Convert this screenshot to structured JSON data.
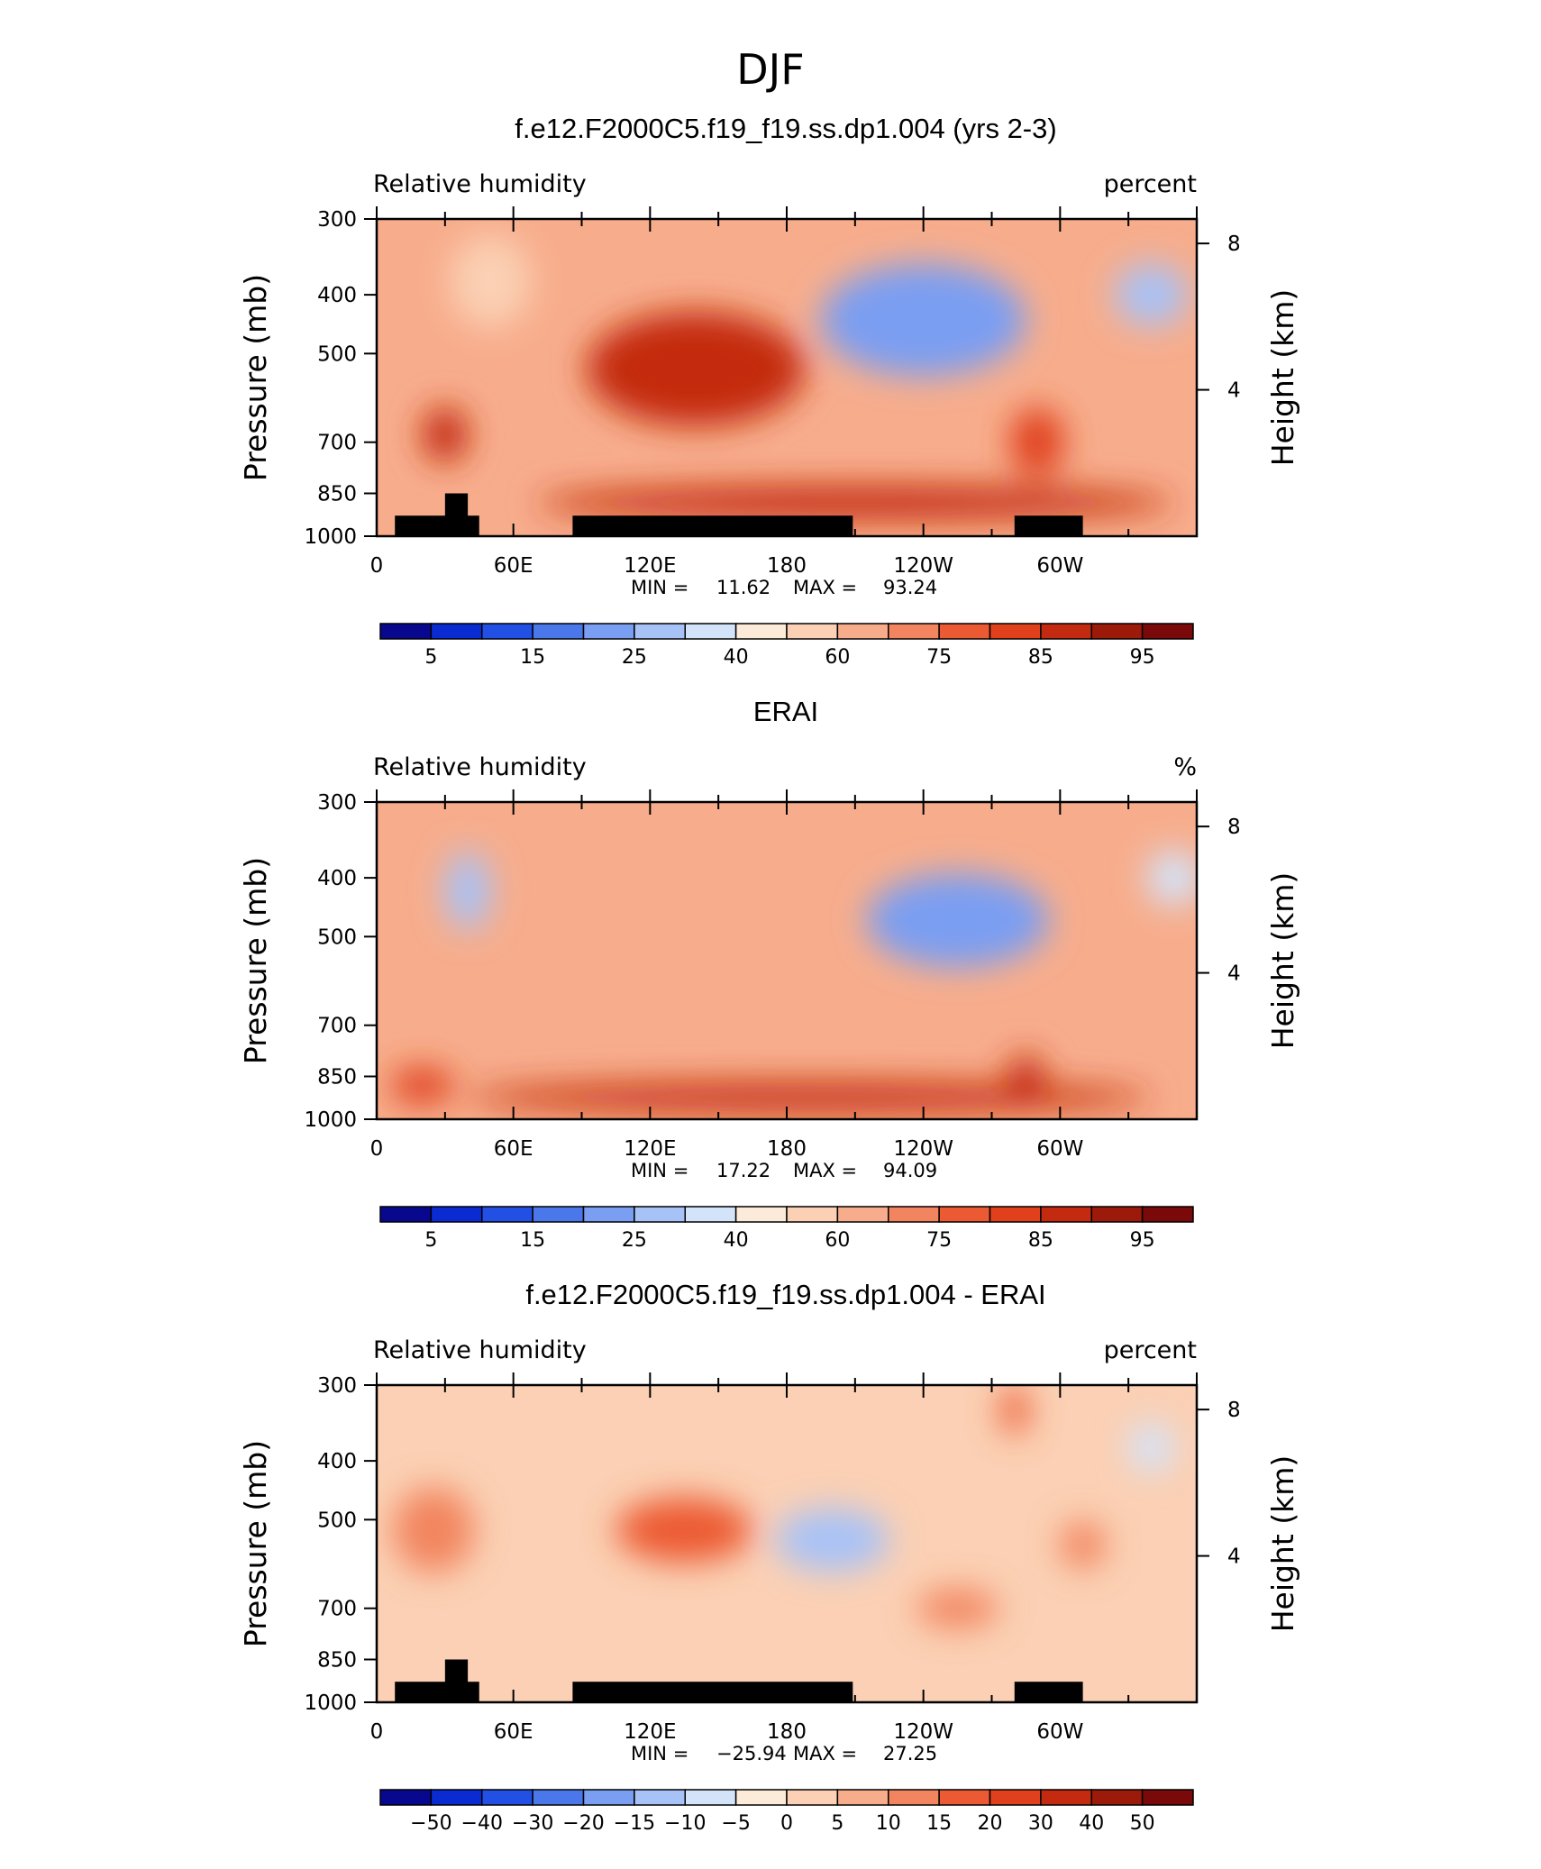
{
  "figure": {
    "title": "DJF"
  },
  "chart_data": [
    {
      "type": "heatmap",
      "title": "f.e12.F2000C5.f19_f19.ss.dp1.004 (yrs 2-3)",
      "left_label": "Relative humidity",
      "right_label": "percent",
      "ylabel": "Pressure (mb)",
      "ylabel_right": "Height (km)",
      "x_ticks": [
        "0",
        "60E",
        "120E",
        "180",
        "120W",
        "60W"
      ],
      "x_tick_values": [
        0,
        60,
        120,
        180,
        240,
        300
      ],
      "xlim": [
        0,
        360
      ],
      "y_ticks": [
        "300",
        "400",
        "500",
        "700",
        "850",
        "1000"
      ],
      "y_tick_values": [
        300,
        400,
        500,
        700,
        850,
        1000
      ],
      "ylim": [
        1000,
        300
      ],
      "height_ticks": [
        "8",
        "4"
      ],
      "height_tick_values": [
        8,
        4
      ],
      "min_label": "MIN =",
      "min_value": "11.62",
      "max_label": "MAX =",
      "max_value": "93.24",
      "colorbar_labels": [
        "5",
        "15",
        "25",
        "40",
        "60",
        "75",
        "85",
        "95"
      ],
      "colorbar_colors": [
        "#08088e",
        "#0b2bd2",
        "#2350e4",
        "#4a78eb",
        "#7a9ef2",
        "#a7c2f7",
        "#d3e3fa",
        "#fdebd9",
        "#fbd0b4",
        "#f7ad8c",
        "#f2855f",
        "#ec5a33",
        "#e0401b",
        "#c42a0f",
        "#9c1a0a",
        "#7a0a0a"
      ],
      "blobs": [
        {
          "lon": 140,
          "p": 530,
          "dx": 48,
          "dy": 210,
          "value": 88
        },
        {
          "lon": 210,
          "p": 880,
          "dx": 140,
          "dy": 80,
          "value": 85
        },
        {
          "lon": 240,
          "p": 440,
          "dx": 45,
          "dy": 170,
          "value": 22
        },
        {
          "lon": 340,
          "p": 400,
          "dx": 16,
          "dy": 80,
          "value": 28
        },
        {
          "lon": 30,
          "p": 680,
          "dx": 10,
          "dy": 120,
          "value": 85
        },
        {
          "lon": 290,
          "p": 700,
          "dx": 12,
          "dy": 160,
          "value": 82
        },
        {
          "lon": 50,
          "p": 380,
          "dx": 18,
          "dy": 120,
          "value": 50
        }
      ],
      "base_value": 62,
      "mountains": [
        {
          "lon0": 8,
          "lon1": 45,
          "p_top": 925
        },
        {
          "lon0": 30,
          "lon1": 40,
          "p_top": 850
        },
        {
          "lon0": 86,
          "lon1": 209,
          "p_top": 925
        },
        {
          "lon0": 280,
          "lon1": 310,
          "p_top": 925
        }
      ]
    },
    {
      "type": "heatmap",
      "title": "ERAI",
      "left_label": "Relative humidity",
      "right_label": "%",
      "ylabel": "Pressure (mb)",
      "ylabel_right": "Height (km)",
      "x_ticks": [
        "0",
        "60E",
        "120E",
        "180",
        "120W",
        "60W"
      ],
      "x_tick_values": [
        0,
        60,
        120,
        180,
        240,
        300
      ],
      "xlim": [
        0,
        360
      ],
      "y_ticks": [
        "300",
        "400",
        "500",
        "700",
        "850",
        "1000"
      ],
      "y_tick_values": [
        300,
        400,
        500,
        700,
        850,
        1000
      ],
      "ylim": [
        1000,
        300
      ],
      "height_ticks": [
        "8",
        "4"
      ],
      "height_tick_values": [
        8,
        4
      ],
      "min_label": "MIN =",
      "min_value": "17.22",
      "max_label": "MAX =",
      "max_value": "94.09",
      "colorbar_labels": [
        "5",
        "15",
        "25",
        "40",
        "60",
        "75",
        "85",
        "95"
      ],
      "colorbar_colors": [
        "#08088e",
        "#0b2bd2",
        "#2350e4",
        "#4a78eb",
        "#7a9ef2",
        "#a7c2f7",
        "#d3e3fa",
        "#fdebd9",
        "#fbd0b4",
        "#f7ad8c",
        "#f2855f",
        "#ec5a33",
        "#e0401b",
        "#c42a0f",
        "#9c1a0a",
        "#7a0a0a"
      ],
      "blobs": [
        {
          "lon": 190,
          "p": 920,
          "dx": 150,
          "dy": 70,
          "value": 86
        },
        {
          "lon": 255,
          "p": 470,
          "dx": 40,
          "dy": 150,
          "value": 24
        },
        {
          "lon": 40,
          "p": 420,
          "dx": 10,
          "dy": 110,
          "value": 28
        },
        {
          "lon": 350,
          "p": 400,
          "dx": 12,
          "dy": 70,
          "value": 35
        },
        {
          "lon": 20,
          "p": 880,
          "dx": 14,
          "dy": 90,
          "value": 82
        },
        {
          "lon": 285,
          "p": 850,
          "dx": 8,
          "dy": 110,
          "value": 85
        }
      ],
      "base_value": 63,
      "mountains": []
    },
    {
      "type": "heatmap",
      "title": "f.e12.F2000C5.f19_f19.ss.dp1.004 - ERAI",
      "left_label": "Relative humidity",
      "right_label": "percent",
      "ylabel": "Pressure (mb)",
      "ylabel_right": "Height (km)",
      "x_ticks": [
        "0",
        "60E",
        "120E",
        "180",
        "120W",
        "60W"
      ],
      "x_tick_values": [
        0,
        60,
        120,
        180,
        240,
        300
      ],
      "xlim": [
        0,
        360
      ],
      "y_ticks": [
        "300",
        "400",
        "500",
        "700",
        "850",
        "1000"
      ],
      "y_tick_values": [
        300,
        400,
        500,
        700,
        850,
        1000
      ],
      "ylim": [
        1000,
        300
      ],
      "height_ticks": [
        "8",
        "4"
      ],
      "height_tick_values": [
        8,
        4
      ],
      "min_label": "MIN =",
      "min_value": "−25.94",
      "max_label": "MAX =",
      "max_value": "27.25",
      "colorbar_labels": [
        "−50",
        "−40",
        "−30",
        "−20",
        "−15",
        "−10",
        "−5",
        "0",
        "5",
        "10",
        "15",
        "20",
        "30",
        "40",
        "50"
      ],
      "colorbar_colors": [
        "#08088e",
        "#0b2bd2",
        "#2350e4",
        "#4a78eb",
        "#7a9ef2",
        "#a7c2f7",
        "#d3e3fa",
        "#fdebd9",
        "#fbd0b4",
        "#f7ad8c",
        "#f2855f",
        "#ec5a33",
        "#e0401b",
        "#c42a0f",
        "#9c1a0a",
        "#7a0a0a"
      ],
      "blobs": [
        {
          "lon": 135,
          "p": 520,
          "dx": 30,
          "dy": 110,
          "value": 18
        },
        {
          "lon": 200,
          "p": 540,
          "dx": 25,
          "dy": 110,
          "value": -12
        },
        {
          "lon": 25,
          "p": 520,
          "dx": 18,
          "dy": 150,
          "value": 14
        },
        {
          "lon": 255,
          "p": 700,
          "dx": 18,
          "dy": 80,
          "value": 14
        },
        {
          "lon": 310,
          "p": 550,
          "dx": 10,
          "dy": 80,
          "value": 12
        },
        {
          "lon": 340,
          "p": 380,
          "dx": 10,
          "dy": 60,
          "value": -8
        },
        {
          "lon": 280,
          "p": 330,
          "dx": 6,
          "dy": 50,
          "value": 16
        }
      ],
      "base_value": 2,
      "mountains": [
        {
          "lon0": 8,
          "lon1": 45,
          "p_top": 925
        },
        {
          "lon0": 30,
          "lon1": 40,
          "p_top": 850
        },
        {
          "lon0": 86,
          "lon1": 209,
          "p_top": 925
        },
        {
          "lon0": 280,
          "lon1": 310,
          "p_top": 925
        }
      ]
    }
  ]
}
